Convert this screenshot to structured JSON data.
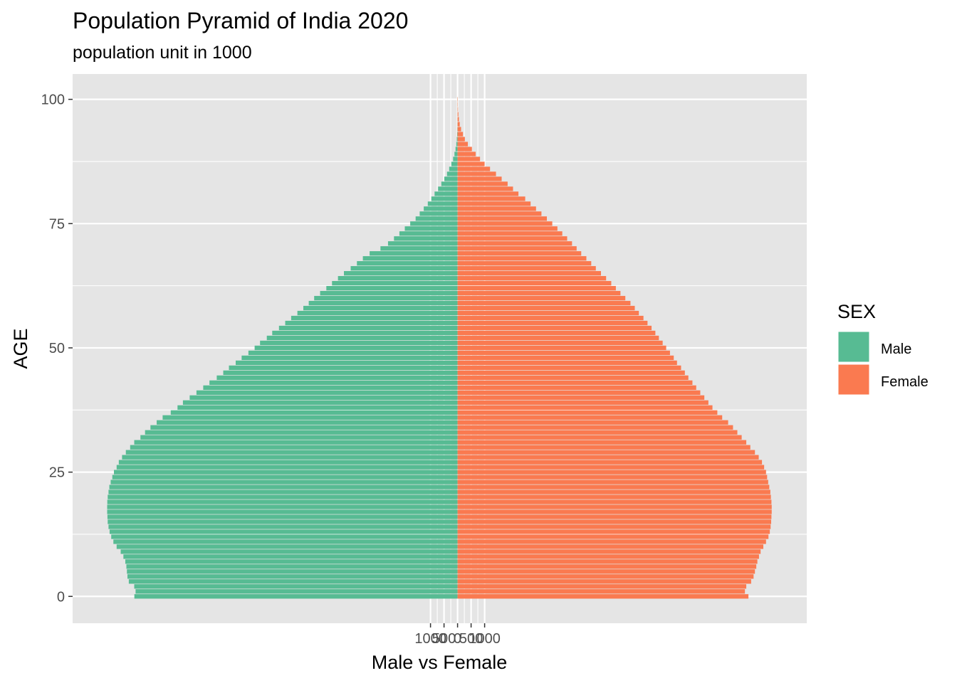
{
  "chart_data": {
    "type": "bar",
    "orientation": "horizontal",
    "title": "Population Pyramid of India 2020",
    "subtitle": "population unit in 1000",
    "xlabel": "Male vs Female",
    "ylabel": "AGE",
    "y_ticks": [
      "0",
      "25",
      "50",
      "75",
      "100"
    ],
    "y_tick_values": [
      0,
      25,
      50,
      75,
      100
    ],
    "ylim": [
      -5.4,
      105.1
    ],
    "x_tick_labels": [
      "1000",
      "500",
      "0",
      "500",
      "1000"
    ],
    "x_tick_values": [
      -1000,
      -500,
      0,
      500,
      1000
    ],
    "grid": true,
    "legend": {
      "title": "SEX",
      "position": "right",
      "entries": [
        "Male",
        "Female"
      ]
    },
    "colors": {
      "Male": "#57BB93",
      "Female": "#FA7A50",
      "panel": "#E5E5E5",
      "grid": "#FFFFFF"
    },
    "ages": [
      0,
      1,
      2,
      3,
      4,
      5,
      6,
      7,
      8,
      9,
      10,
      11,
      12,
      13,
      14,
      15,
      16,
      17,
      18,
      19,
      20,
      21,
      22,
      23,
      24,
      25,
      26,
      27,
      28,
      29,
      30,
      31,
      32,
      33,
      34,
      35,
      36,
      37,
      38,
      39,
      40,
      41,
      42,
      43,
      44,
      45,
      46,
      47,
      48,
      49,
      50,
      51,
      52,
      53,
      54,
      55,
      56,
      57,
      58,
      59,
      60,
      61,
      62,
      63,
      64,
      65,
      66,
      67,
      68,
      69,
      70,
      71,
      72,
      73,
      74,
      75,
      76,
      77,
      78,
      79,
      80,
      81,
      82,
      83,
      84,
      85,
      86,
      87,
      88,
      89,
      90,
      91,
      92,
      93,
      94,
      95,
      96,
      97,
      98,
      99,
      100
    ],
    "series": [
      {
        "name": "Male",
        "values": [
          -11945,
          -11900,
          -11950,
          -12150,
          -12200,
          -12220,
          -12240,
          -12280,
          -12350,
          -12450,
          -12600,
          -12720,
          -12800,
          -12860,
          -12900,
          -12930,
          -12940,
          -12950,
          -12950,
          -12945,
          -12930,
          -12900,
          -12870,
          -12820,
          -12760,
          -12700,
          -12600,
          -12520,
          -12400,
          -12260,
          -12100,
          -11950,
          -11720,
          -11550,
          -11350,
          -11120,
          -10900,
          -10600,
          -10350,
          -10150,
          -9900,
          -9650,
          -9400,
          -9170,
          -8900,
          -8660,
          -8450,
          -8200,
          -7980,
          -7730,
          -7500,
          -7300,
          -7050,
          -6850,
          -6600,
          -6370,
          -6150,
          -5920,
          -5700,
          -5500,
          -5300,
          -5080,
          -4850,
          -4640,
          -4420,
          -4200,
          -3950,
          -3720,
          -3500,
          -3250,
          -2850,
          -2570,
          -2350,
          -2150,
          -1950,
          -1750,
          -1550,
          -1400,
          -1250,
          -1100,
          -970,
          -850,
          -720,
          -600,
          -490,
          -390,
          -310,
          -230,
          -165,
          -115,
          -75,
          -46,
          -28,
          -16,
          -9,
          -5,
          -3,
          -2,
          -1,
          -0.5,
          -0.2
        ]
      },
      {
        "name": "Female",
        "values": [
          10750,
          10620,
          10670,
          10850,
          10940,
          10990,
          11040,
          11080,
          11140,
          11200,
          11300,
          11400,
          11490,
          11540,
          11570,
          11590,
          11600,
          11610,
          11610,
          11600,
          11580,
          11560,
          11520,
          11480,
          11440,
          11400,
          11330,
          11250,
          11130,
          10990,
          10820,
          10670,
          10500,
          10340,
          10180,
          10000,
          9780,
          9600,
          9420,
          9270,
          9120,
          8970,
          8820,
          8680,
          8530,
          8400,
          8260,
          8110,
          7990,
          7850,
          7710,
          7580,
          7440,
          7310,
          7170,
          7020,
          6870,
          6700,
          6550,
          6390,
          6200,
          6020,
          5850,
          5680,
          5490,
          5300,
          5110,
          4940,
          4760,
          4570,
          4400,
          4230,
          4050,
          3870,
          3690,
          3500,
          3300,
          3100,
          2900,
          2700,
          2500,
          2250,
          2050,
          1850,
          1630,
          1420,
          1200,
          1000,
          830,
          670,
          530,
          380,
          270,
          200,
          130,
          80,
          50,
          30,
          15,
          7,
          3
        ]
      }
    ]
  }
}
